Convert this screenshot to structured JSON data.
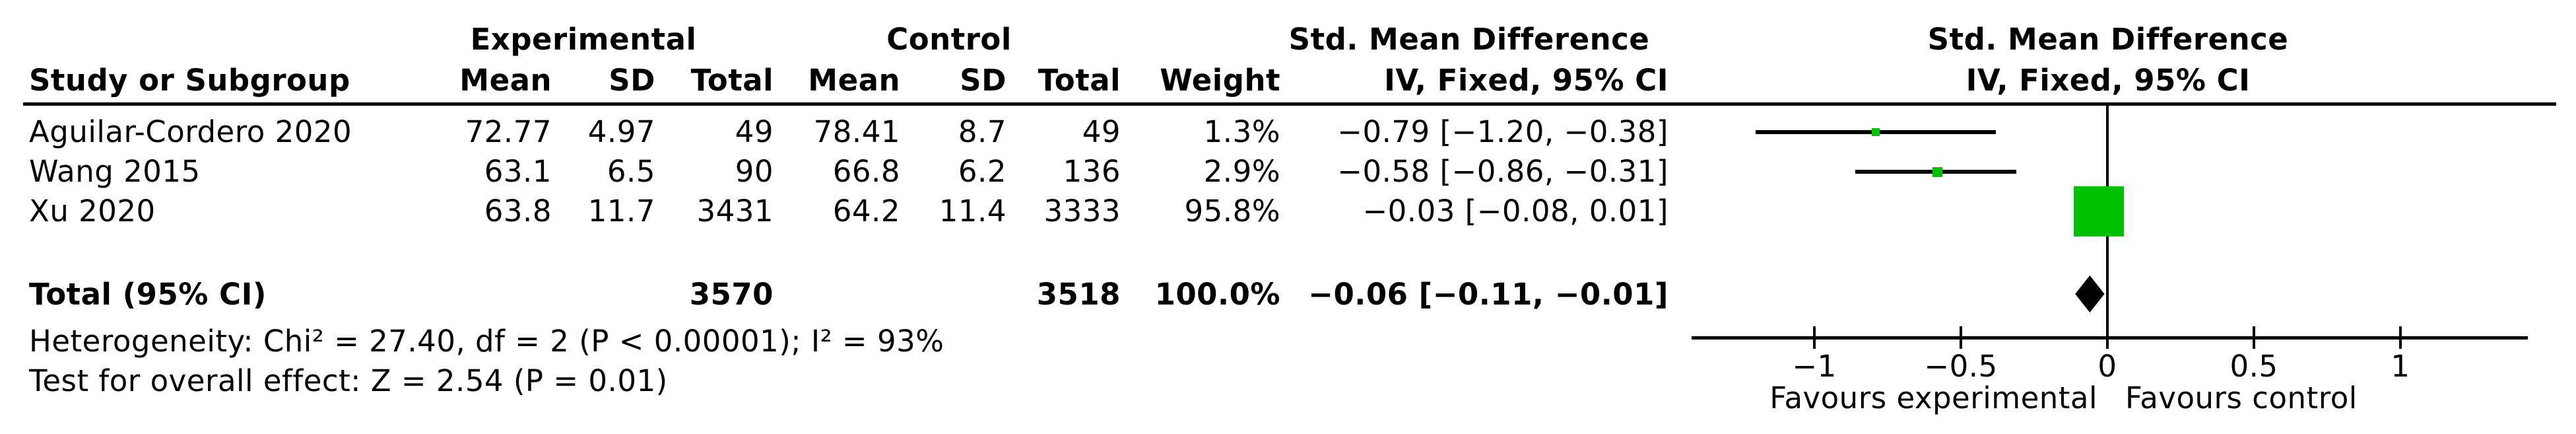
{
  "header": {
    "group_experimental": "Experimental",
    "group_control": "Control",
    "smd_table": "Std. Mean Difference",
    "smd_plot": "Std. Mean Difference",
    "study": "Study or Subgroup",
    "exp_mean": "Mean",
    "exp_sd": "SD",
    "exp_total": "Total",
    "ctl_mean": "Mean",
    "ctl_sd": "SD",
    "ctl_total": "Total",
    "weight": "Weight",
    "method_table": "IV, Fixed, 95% CI",
    "method_plot": "IV, Fixed, 95% CI"
  },
  "rows": [
    {
      "study": "Aguilar-Cordero 2020",
      "exp_mean": "72.77",
      "exp_sd": "4.97",
      "exp_total": "49",
      "ctl_mean": "78.41",
      "ctl_sd": "8.7",
      "ctl_total": "49",
      "weight": "1.3%",
      "smd_ci": "−0.79 [−1.20, −0.38]"
    },
    {
      "study": "Wang 2015",
      "exp_mean": "63.1",
      "exp_sd": "6.5",
      "exp_total": "90",
      "ctl_mean": "66.8",
      "ctl_sd": "6.2",
      "ctl_total": "136",
      "weight": "2.9%",
      "smd_ci": "−0.58 [−0.86, −0.31]"
    },
    {
      "study": "Xu 2020",
      "exp_mean": "63.8",
      "exp_sd": "11.7",
      "exp_total": "3431",
      "ctl_mean": "64.2",
      "ctl_sd": "11.4",
      "ctl_total": "3333",
      "weight": "95.8%",
      "smd_ci": "−0.03 [−0.08, 0.01]"
    }
  ],
  "total": {
    "label": "Total (95% CI)",
    "exp_total": "3570",
    "ctl_total": "3518",
    "weight": "100.0%",
    "smd_ci": "−0.06 [−0.11, −0.01]"
  },
  "footnotes": {
    "heterogeneity": "Heterogeneity: Chi² = 27.40, df = 2 (P < 0.00001); I² = 93%",
    "overall_effect": "Test for overall effect: Z = 2.54 (P = 0.01)"
  },
  "axis_labels": {
    "favours_left": "Favours experimental",
    "favours_right": "Favours control"
  },
  "chart_data": {
    "type": "scatter",
    "subtype": "forest-plot",
    "title": "Std. Mean Difference",
    "method": "IV, Fixed, 95% CI",
    "xlim": [
      -1,
      1
    ],
    "tick_values": [
      -1,
      -0.5,
      0,
      0.5,
      1
    ],
    "tick_labels": [
      "−1",
      "−0.5",
      "0",
      "0.5",
      "1"
    ],
    "xlabel_left": "Favours experimental",
    "xlabel_right": "Favours control",
    "marker_color": "#00C200",
    "diamond_color": "#000000",
    "studies": [
      {
        "name": "Aguilar-Cordero 2020",
        "estimate": -0.79,
        "ci_low": -1.2,
        "ci_high": -0.38,
        "weight_pct": 1.3
      },
      {
        "name": "Wang 2015",
        "estimate": -0.58,
        "ci_low": -0.86,
        "ci_high": -0.31,
        "weight_pct": 2.9
      },
      {
        "name": "Xu 2020",
        "estimate": -0.03,
        "ci_low": -0.08,
        "ci_high": 0.01,
        "weight_pct": 95.8
      }
    ],
    "total": {
      "name": "Total (95% CI)",
      "estimate": -0.06,
      "ci_low": -0.11,
      "ci_high": -0.01,
      "weight_pct": 100.0
    },
    "heterogeneity": {
      "chi2": 27.4,
      "df": 2,
      "p": "< 0.00001",
      "i2_pct": 93
    },
    "overall_effect": {
      "z": 2.54,
      "p": "= 0.01"
    }
  }
}
